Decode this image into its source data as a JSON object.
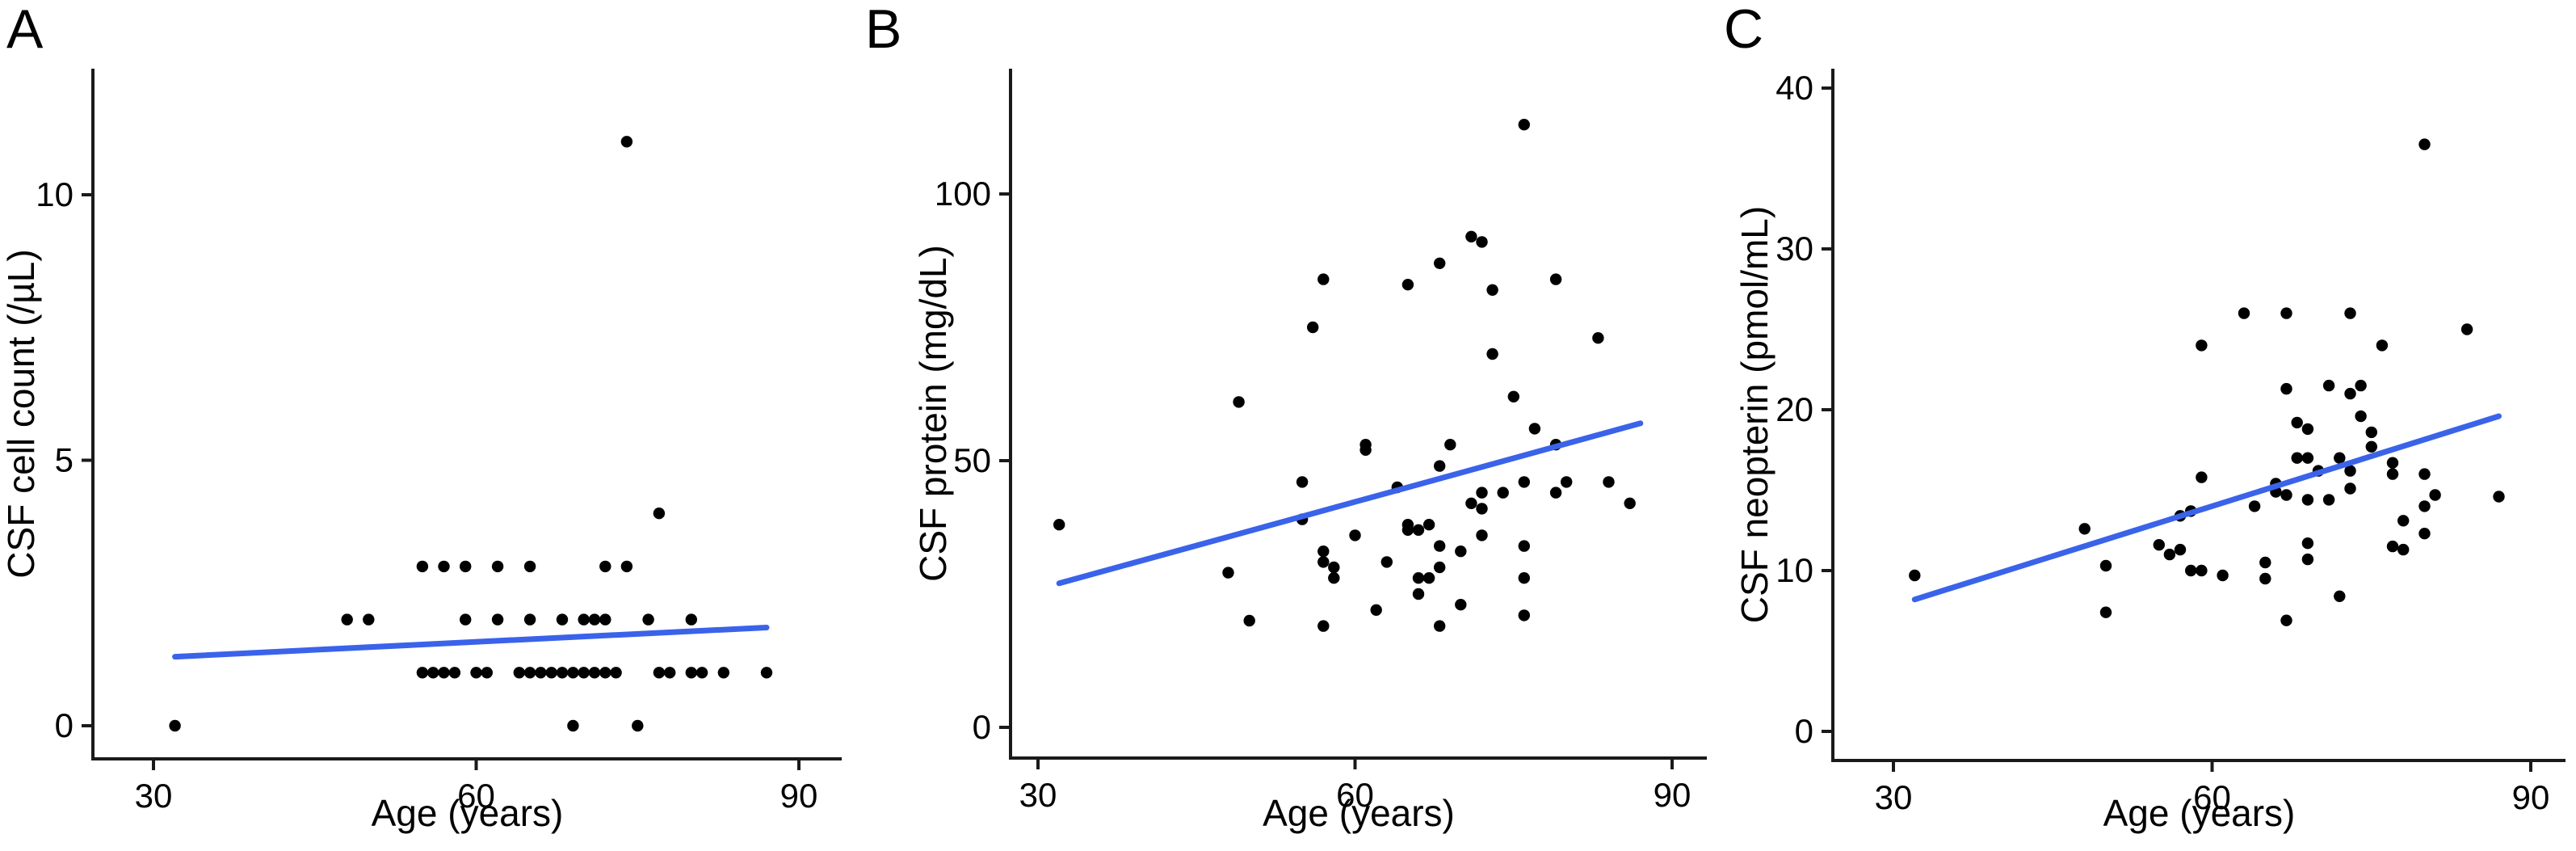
{
  "figure": {
    "background": "#ffffff",
    "dot_color": "#000000",
    "trend_color": "#3a63ea",
    "axis_color": "#1a1a1a",
    "text_color": "#000000"
  },
  "chart_data": [
    {
      "type": "scatter",
      "panel_label": "A",
      "xlabel": "Age (years)",
      "ylabel": "CSF cell count (/µL)",
      "x_ticks": [
        30,
        60,
        90
      ],
      "y_ticks": [
        0,
        5,
        10
      ],
      "xlim": [
        28,
        93
      ],
      "ylim": [
        -0.8,
        12.4
      ],
      "grid": false,
      "legend": "none",
      "points": [
        [
          32,
          0
        ],
        [
          69,
          0
        ],
        [
          75,
          0
        ],
        [
          55,
          1
        ],
        [
          56,
          1
        ],
        [
          57,
          1
        ],
        [
          58,
          1
        ],
        [
          60,
          1
        ],
        [
          61,
          1
        ],
        [
          64,
          1
        ],
        [
          65,
          1
        ],
        [
          66,
          1
        ],
        [
          67,
          1
        ],
        [
          68,
          1
        ],
        [
          69,
          1
        ],
        [
          70,
          1
        ],
        [
          71,
          1
        ],
        [
          72,
          1
        ],
        [
          73,
          1
        ],
        [
          77,
          1
        ],
        [
          78,
          1
        ],
        [
          80,
          1
        ],
        [
          81,
          1
        ],
        [
          83,
          1
        ],
        [
          87,
          1
        ],
        [
          48,
          2
        ],
        [
          50,
          2
        ],
        [
          59,
          2
        ],
        [
          62,
          2
        ],
        [
          65,
          2
        ],
        [
          68,
          2
        ],
        [
          70,
          2
        ],
        [
          71,
          2
        ],
        [
          72,
          2
        ],
        [
          76,
          2
        ],
        [
          80,
          2
        ],
        [
          55,
          3
        ],
        [
          57,
          3
        ],
        [
          59,
          3
        ],
        [
          62,
          3
        ],
        [
          65,
          3
        ],
        [
          72,
          3
        ],
        [
          74,
          3
        ],
        [
          77,
          4
        ],
        [
          74,
          11
        ]
      ],
      "trend_line": {
        "x1": 32,
        "y1": 1.3,
        "x2": 87,
        "y2": 1.85
      }
    },
    {
      "type": "scatter",
      "panel_label": "B",
      "xlabel": "Age (years)",
      "ylabel": "CSF protein (mg/dL)",
      "x_ticks": [
        30,
        60,
        90
      ],
      "y_ticks": [
        0,
        50,
        100
      ],
      "xlim": [
        28,
        93
      ],
      "ylim": [
        -8,
        120
      ],
      "grid": false,
      "legend": "none",
      "points": [
        [
          32,
          38
        ],
        [
          48,
          29
        ],
        [
          49,
          61
        ],
        [
          50,
          20
        ],
        [
          55,
          46
        ],
        [
          55,
          39
        ],
        [
          56,
          75
        ],
        [
          57,
          84
        ],
        [
          57,
          33
        ],
        [
          57,
          31
        ],
        [
          57,
          19
        ],
        [
          58,
          30
        ],
        [
          58,
          28
        ],
        [
          60,
          36
        ],
        [
          61,
          53
        ],
        [
          61,
          52
        ],
        [
          62,
          22
        ],
        [
          63,
          31
        ],
        [
          64,
          45
        ],
        [
          65,
          83
        ],
        [
          65,
          38
        ],
        [
          65,
          37
        ],
        [
          66,
          37
        ],
        [
          66,
          28
        ],
        [
          66,
          25
        ],
        [
          67,
          38
        ],
        [
          67,
          28
        ],
        [
          68,
          87
        ],
        [
          68,
          49
        ],
        [
          68,
          34
        ],
        [
          68,
          30
        ],
        [
          68,
          19
        ],
        [
          69,
          53
        ],
        [
          70,
          33
        ],
        [
          70,
          23
        ],
        [
          71,
          92
        ],
        [
          71,
          42
        ],
        [
          72,
          91
        ],
        [
          72,
          44
        ],
        [
          72,
          41
        ],
        [
          72,
          36
        ],
        [
          73,
          82
        ],
        [
          73,
          70
        ],
        [
          74,
          44
        ],
        [
          75,
          62
        ],
        [
          76,
          113
        ],
        [
          76,
          46
        ],
        [
          76,
          34
        ],
        [
          76,
          28
        ],
        [
          76,
          21
        ],
        [
          77,
          56
        ],
        [
          79,
          84
        ],
        [
          79,
          53
        ],
        [
          79,
          44
        ],
        [
          80,
          46
        ],
        [
          83,
          73
        ],
        [
          84,
          46
        ],
        [
          86,
          42
        ]
      ],
      "trend_line": {
        "x1": 32,
        "y1": 27,
        "x2": 87,
        "y2": 57
      }
    },
    {
      "type": "scatter",
      "panel_label": "C",
      "xlabel": "Age (years)",
      "ylabel": "CSF neopterin (pmol/mL)",
      "x_ticks": [
        30,
        60,
        90
      ],
      "y_ticks": [
        0,
        10,
        20,
        30,
        40
      ],
      "xlim": [
        28,
        93
      ],
      "ylim": [
        -3,
        42
      ],
      "grid": false,
      "legend": "none",
      "points": [
        [
          32,
          9.7
        ],
        [
          48,
          12.6
        ],
        [
          50,
          10.3
        ],
        [
          50,
          7.4
        ],
        [
          55,
          11.6
        ],
        [
          56,
          11
        ],
        [
          57,
          11.3
        ],
        [
          57,
          13.4
        ],
        [
          58,
          13.7
        ],
        [
          58,
          10
        ],
        [
          59,
          10
        ],
        [
          59,
          15.8
        ],
        [
          59,
          24
        ],
        [
          61,
          9.7
        ],
        [
          63,
          26
        ],
        [
          64,
          14
        ],
        [
          65,
          10.5
        ],
        [
          65,
          9.5
        ],
        [
          66,
          15.4
        ],
        [
          66,
          14.9
        ],
        [
          67,
          14.7
        ],
        [
          67,
          26
        ],
        [
          67,
          21.3
        ],
        [
          67,
          6.9
        ],
        [
          68,
          19.2
        ],
        [
          68,
          17
        ],
        [
          69,
          18.8
        ],
        [
          69,
          17
        ],
        [
          69,
          14.4
        ],
        [
          69,
          11.7
        ],
        [
          69,
          10.7
        ],
        [
          70,
          16.2
        ],
        [
          71,
          21.5
        ],
        [
          71,
          14.4
        ],
        [
          72,
          17
        ],
        [
          72,
          8.4
        ],
        [
          73,
          26
        ],
        [
          73,
          21
        ],
        [
          73,
          16.2
        ],
        [
          73,
          15.1
        ],
        [
          74,
          21.5
        ],
        [
          74,
          19.6
        ],
        [
          75,
          18.6
        ],
        [
          75,
          17.7
        ],
        [
          76,
          24
        ],
        [
          77,
          16.7
        ],
        [
          77,
          16
        ],
        [
          77,
          11.5
        ],
        [
          78,
          13.1
        ],
        [
          78,
          11.3
        ],
        [
          80,
          36.5
        ],
        [
          80,
          16
        ],
        [
          80,
          14
        ],
        [
          80,
          12.3
        ],
        [
          81,
          14.7
        ],
        [
          84,
          25
        ],
        [
          87,
          14.6
        ]
      ],
      "trend_line": {
        "x1": 32,
        "y1": 8.2,
        "x2": 87,
        "y2": 19.6
      }
    }
  ]
}
